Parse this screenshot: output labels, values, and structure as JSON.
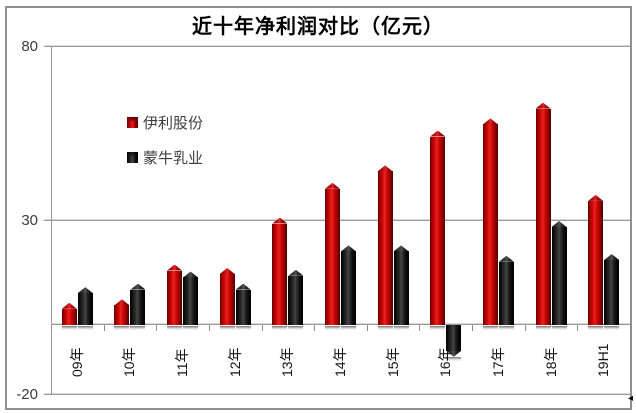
{
  "page": {
    "background": "#ffffff"
  },
  "chart": {
    "title": "近十年净利润对比（亿元）",
    "y_axis": {
      "tick_labels": [
        "80",
        "30",
        "-20"
      ]
    },
    "legend": {
      "items": [
        {
          "label": "伊利股份"
        },
        {
          "label": "蒙牛乳业"
        }
      ]
    },
    "colors": {
      "series1": "#c00000",
      "series2": "#121212",
      "grid": "#9a9a9a",
      "background": "#ffffff"
    }
  },
  "chart_data": {
    "type": "bar",
    "title": "近十年净利润对比（亿元）",
    "categories": [
      "09年",
      "10年",
      "11年",
      "12年",
      "13年",
      "14年",
      "15年",
      "16年",
      "17年",
      "18年",
      "19H1"
    ],
    "series": [
      {
        "name": "伊利股份",
        "color": "#c00000",
        "values": [
          6.5,
          7.5,
          17.5,
          16.5,
          31,
          41,
          46,
          56,
          59.5,
          64,
          37.5
        ]
      },
      {
        "name": "蒙牛乳业",
        "color": "#121212",
        "values": [
          11,
          12,
          15.5,
          12,
          16,
          23,
          23,
          -9,
          20,
          30,
          20.5
        ]
      }
    ],
    "ylim": [
      -20,
      80
    ],
    "yticks": [
      80,
      30,
      -20
    ],
    "grid": "horizontal",
    "legend_position": "inside-top-left",
    "bar_style": "3d-bevel",
    "x_tick_label_rotation": -90
  },
  "icons": {
    "cursor_arrow": "◂"
  }
}
